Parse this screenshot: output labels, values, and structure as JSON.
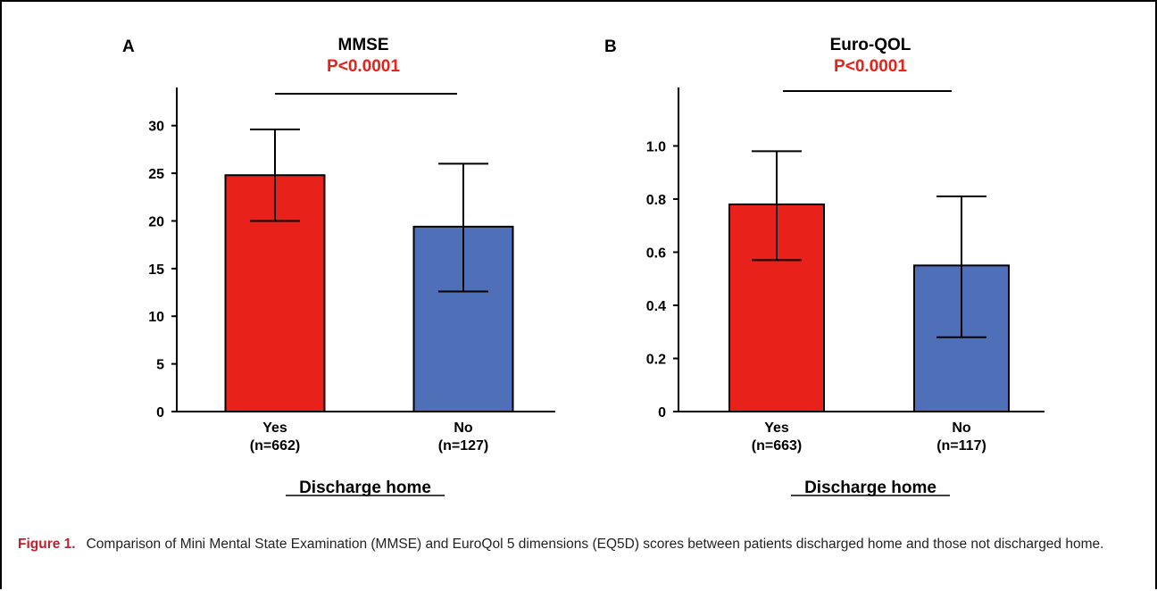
{
  "colors": {
    "yes": "#e8211a",
    "no": "#4f70b9",
    "pvalue": "#e8211a",
    "axis": "#000000"
  },
  "chart_data": [
    {
      "type": "bar",
      "panel_label": "A",
      "title": "MMSE",
      "subtitle": "P<0.0001",
      "xlabel": "Discharge home",
      "ylabel": "",
      "categories": [
        "Yes",
        "No"
      ],
      "category_sublabels": [
        "(n=662)",
        "(n=127)"
      ],
      "values": [
        24.8,
        19.4
      ],
      "error_upper": [
        29.6,
        26.0
      ],
      "error_lower": [
        20.0,
        12.6
      ],
      "ylim": [
        0,
        34
      ],
      "yticks": [
        0,
        5,
        10,
        15,
        20,
        25,
        30
      ],
      "ytick_labels": [
        "0",
        "5",
        "10",
        "15",
        "20",
        "25",
        "30"
      ],
      "grid": false,
      "legend": "none"
    },
    {
      "type": "bar",
      "panel_label": "B",
      "title": "Euro-QOL",
      "subtitle": "P<0.0001",
      "xlabel": "Discharge home",
      "ylabel": "",
      "categories": [
        "Yes",
        "No"
      ],
      "category_sublabels": [
        "(n=663)",
        "(n=117)"
      ],
      "values": [
        0.78,
        0.55
      ],
      "error_upper": [
        0.98,
        0.81
      ],
      "error_lower": [
        0.57,
        0.28
      ],
      "ylim": [
        0,
        1.22
      ],
      "yticks": [
        0,
        0.2,
        0.4,
        0.6,
        0.8,
        1.0
      ],
      "ytick_labels": [
        "0",
        "0.2",
        "0.4",
        "0.6",
        "0.8",
        "1.0"
      ],
      "grid": false,
      "legend": "none"
    }
  ],
  "caption": {
    "label": "Figure 1.",
    "text": "Comparison of Mini Mental State Examination (MMSE) and EuroQol 5 dimensions (EQ5D) scores between patients discharged home and those not discharged home."
  }
}
